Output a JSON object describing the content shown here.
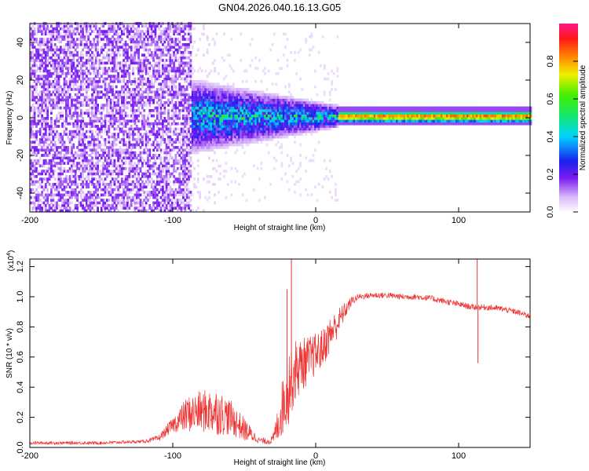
{
  "chart_data": [
    {
      "type": "heatmap",
      "title": "GN04.2026.040.16.13.G05",
      "xlabel": "Height of straight line (km)",
      "ylabel": "Frequency (Hz)",
      "xlim": [
        -200,
        150
      ],
      "ylim": [
        -50,
        50
      ],
      "xticks": [
        -200,
        -100,
        0,
        100
      ],
      "yticks": [
        -40,
        -20,
        0,
        20,
        40
      ],
      "colorbar": {
        "label": "Normalized spectral amplitude",
        "range": [
          0,
          1
        ],
        "ticks": [
          "0.0",
          "0.2",
          "0.4",
          "0.6",
          "0.8"
        ],
        "tick_values": [
          0,
          0.2,
          0.4,
          0.6,
          0.8
        ]
      },
      "regions": [
        {
          "name": "noise",
          "x_range": [
            -200,
            -88
          ],
          "freq_range": [
            -50,
            50
          ],
          "amplitude": 0.15
        },
        {
          "name": "transition",
          "x_range": [
            -88,
            15
          ],
          "freq_center": 0,
          "freq_spread_start": 20,
          "freq_spread_end": 6,
          "amplitude": 0.4
        },
        {
          "name": "carrier",
          "x_range": [
            15,
            150
          ],
          "freq_center": 0,
          "freq_spread": 3,
          "amplitude": 0.9
        }
      ]
    },
    {
      "type": "line",
      "xlabel": "Height of straight line (km)",
      "ylabel": "SNR (10 * v/v)",
      "y_scale_label": "(x10",
      "y_scale_exp": "4",
      "y_scale_close": ")",
      "xlim": [
        -200,
        150
      ],
      "ylim": [
        0,
        1.25
      ],
      "xticks": [
        -200,
        -100,
        0,
        100
      ],
      "yticks": [
        "0.0",
        "0.2",
        "0.4",
        "0.6",
        "0.8",
        "1.0",
        "1.2"
      ],
      "ytick_values": [
        0,
        0.2,
        0.4,
        0.6,
        0.8,
        1.0,
        1.2
      ],
      "color": "#ee3333",
      "series": [
        {
          "name": "SNR",
          "x": [
            -200,
            -150,
            -120,
            -110,
            -100,
            -90,
            -80,
            -70,
            -60,
            -50,
            -40,
            -35,
            -30,
            -25,
            -20,
            -15,
            -10,
            -5,
            0,
            5,
            10,
            15,
            20,
            25,
            30,
            40,
            50,
            60,
            70,
            80,
            90,
            100,
            110,
            120,
            130,
            140,
            150
          ],
          "y": [
            0.03,
            0.03,
            0.04,
            0.06,
            0.15,
            0.22,
            0.24,
            0.24,
            0.2,
            0.12,
            0.05,
            0.04,
            0.05,
            0.2,
            0.4,
            0.5,
            0.55,
            0.58,
            0.62,
            0.66,
            0.75,
            0.82,
            0.9,
            0.97,
            1.0,
            1.01,
            1.01,
            1.0,
            1.0,
            0.99,
            0.97,
            0.95,
            0.93,
            0.93,
            0.92,
            0.9,
            0.87
          ],
          "noise": [
            0.01,
            0.01,
            0.01,
            0.02,
            0.05,
            0.12,
            0.14,
            0.16,
            0.12,
            0.08,
            0.02,
            0.02,
            0.03,
            0.15,
            0.28,
            0.22,
            0.18,
            0.16,
            0.14,
            0.13,
            0.12,
            0.1,
            0.06,
            0.03,
            0.02,
            0.02,
            0.02,
            0.02,
            0.02,
            0.02,
            0.02,
            0.02,
            0.02,
            0.02,
            0.02,
            0.02,
            0.02
          ]
        }
      ],
      "spikes": [
        {
          "x": -17,
          "y": 1.25
        },
        {
          "x": -20,
          "y": 1.05
        },
        {
          "x": 113,
          "y": 1.25
        },
        {
          "x": 113.5,
          "y": 0.56
        }
      ]
    }
  ]
}
